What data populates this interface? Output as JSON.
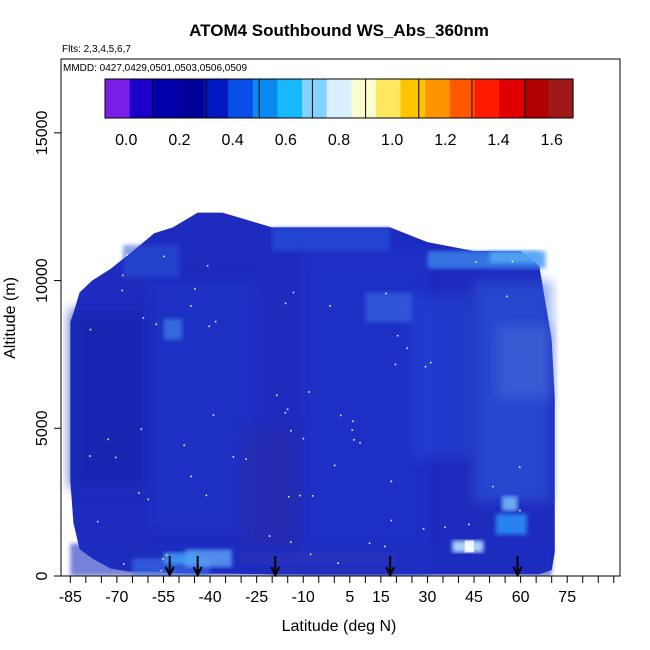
{
  "chart_data": {
    "type": "heatmap",
    "title": "ATOM4 Southbound WS_Abs_360nm",
    "flights_label": "Flts: 2,3,4,5,6,7",
    "dates_label": "MMDD: 0427,0429,0501,0503,0506,0509",
    "xlabel": "Latitude (deg N)",
    "ylabel": "Altitude (m)",
    "xlim": [
      -88,
      92
    ],
    "ylim": [
      0,
      17500
    ],
    "x_tick_labels": [
      "-85",
      "-70",
      "-55",
      "-40",
      "-25",
      "-10",
      "5",
      "15",
      "30",
      "45",
      "60",
      "75"
    ],
    "x_tick_values": [
      -85,
      -70,
      -55,
      -40,
      -25,
      -10,
      5,
      15,
      30,
      45,
      60,
      75
    ],
    "x_minor_ticks": [
      -80,
      -75,
      -65,
      -60,
      -50,
      -45,
      -35,
      -30,
      -20,
      -15,
      -5,
      0,
      10,
      20,
      25,
      35,
      40,
      50,
      55,
      65,
      70,
      80,
      85,
      90
    ],
    "y_tick_labels": [
      "0",
      "5000",
      "10000",
      "15000"
    ],
    "y_tick_values": [
      0,
      5000,
      10000,
      15000
    ],
    "colorbar": {
      "min": -0.08,
      "max": 1.68,
      "tick_labels": [
        "0.0",
        "0.2",
        "0.4",
        "0.6",
        "0.8",
        "1.0",
        "1.2",
        "1.4",
        "1.6"
      ],
      "tick_values": [
        0.0,
        0.2,
        0.4,
        0.6,
        0.8,
        1.0,
        1.2,
        1.4,
        1.6
      ],
      "colors": [
        "#7a1ee8",
        "#1a00c8",
        "#0000aa",
        "#000099",
        "#0018c0",
        "#0a4ee8",
        "#0a8af0",
        "#18b8ff",
        "#80d4ff",
        "#d8f0ff",
        "#fbfbd0",
        "#ffe860",
        "#ffc400",
        "#ff9400",
        "#ff5800",
        "#ff1a00",
        "#e00000",
        "#b00000",
        "#a01818"
      ]
    },
    "arrow_latitudes": [
      -53,
      -44,
      -19,
      18,
      59
    ],
    "dots_color": "#ffffff",
    "background_color": "#1e2bbf"
  }
}
